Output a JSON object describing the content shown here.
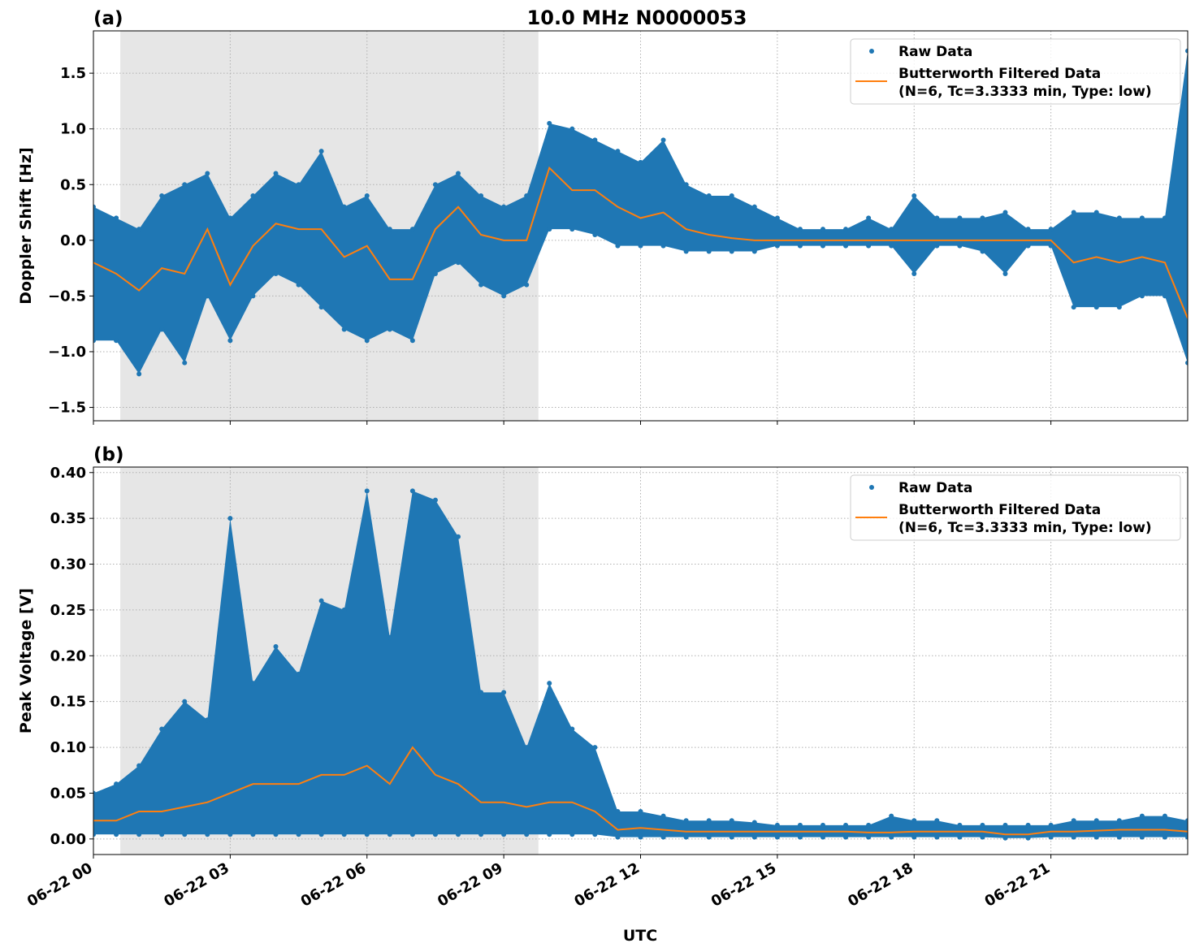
{
  "title": "10.0 MHz N0000053",
  "colors": {
    "raw": "#1f77b4",
    "filtered": "#ff7f0e",
    "shade": "#e6e6e6"
  },
  "xlabel": "UTC",
  "x_ticks": [
    "06-22 00",
    "06-22 03",
    "06-22 06",
    "06-22 09",
    "06-22 12",
    "06-22 15",
    "06-22 18",
    "06-22 21"
  ],
  "shaded_interval_hours": [
    0.59,
    9.76
  ],
  "legend": {
    "raw": "Raw Data",
    "filtered_line1": "Butterworth Filtered Data",
    "filtered_line2": "(N=6, Tc=3.3333 min, Type: low)",
    "placement": "top-right"
  },
  "chart_data": [
    {
      "type": "scatter+line",
      "panel_label": "(a)",
      "ylabel": "Doppler Shift [Hz]",
      "xlim_hours": [
        0,
        24
      ],
      "ylim": [
        -1.62,
        1.88
      ],
      "y_ticks": [
        "−1.5",
        "−1.0",
        "−0.5",
        "0.0",
        "0.5",
        "1.0",
        "1.5"
      ],
      "y_tick_values": [
        -1.5,
        -1,
        -0.5,
        0,
        0.5,
        1,
        1.5
      ],
      "grid": true,
      "x_hours": [
        0,
        0.5,
        1,
        1.5,
        2,
        2.5,
        3,
        3.5,
        4,
        4.5,
        5,
        5.5,
        6,
        6.5,
        7,
        7.5,
        8,
        8.5,
        9,
        9.5,
        10,
        10.5,
        11,
        11.5,
        12,
        12.5,
        13,
        13.5,
        14,
        14.5,
        15,
        15.5,
        16,
        16.5,
        17,
        17.5,
        18,
        18.5,
        19,
        19.5,
        20,
        20.5,
        21,
        21.5,
        22,
        22.5,
        23,
        23.5,
        24
      ],
      "filtered": [
        -0.2,
        -0.3,
        -0.45,
        -0.25,
        -0.3,
        0.1,
        -0.4,
        -0.05,
        0.15,
        0.1,
        0.1,
        -0.15,
        -0.05,
        -0.35,
        -0.35,
        0.1,
        0.3,
        0.05,
        0,
        0,
        0.65,
        0.45,
        0.45,
        0.3,
        0.2,
        0.25,
        0.1,
        0.05,
        0.02,
        0,
        0,
        0,
        0,
        0,
        0,
        0,
        0,
        0,
        0,
        0,
        0,
        0,
        0,
        -0.2,
        -0.15,
        -0.2,
        -0.15,
        -0.2,
        -0.7
      ],
      "raw_min": [
        -0.9,
        -0.9,
        -1.2,
        -0.8,
        -1.1,
        -0.5,
        -0.9,
        -0.5,
        -0.3,
        -0.4,
        -0.6,
        -0.8,
        -0.9,
        -0.8,
        -0.9,
        -0.3,
        -0.2,
        -0.4,
        -0.5,
        -0.4,
        0.1,
        0.1,
        0.05,
        -0.05,
        -0.05,
        -0.05,
        -0.1,
        -0.1,
        -0.1,
        -0.1,
        -0.05,
        -0.05,
        -0.05,
        -0.05,
        -0.05,
        -0.05,
        -0.3,
        -0.05,
        -0.05,
        -0.1,
        -0.3,
        -0.05,
        -0.05,
        -0.6,
        -0.6,
        -0.6,
        -0.5,
        -0.5,
        -1.1
      ],
      "raw_max": [
        0.3,
        0.2,
        0.1,
        0.4,
        0.5,
        0.6,
        0.2,
        0.4,
        0.6,
        0.5,
        0.8,
        0.3,
        0.4,
        0.1,
        0.1,
        0.5,
        0.6,
        0.4,
        0.3,
        0.4,
        1.05,
        1.0,
        0.9,
        0.8,
        0.7,
        0.9,
        0.5,
        0.4,
        0.4,
        0.3,
        0.2,
        0.1,
        0.1,
        0.1,
        0.2,
        0.1,
        0.4,
        0.2,
        0.2,
        0.2,
        0.25,
        0.1,
        0.1,
        0.25,
        0.25,
        0.2,
        0.2,
        0.2,
        1.7
      ]
    },
    {
      "type": "scatter+line",
      "panel_label": "(b)",
      "ylabel": "Peak Voltage [V]",
      "xlim_hours": [
        0,
        24
      ],
      "ylim": [
        -0.017,
        0.406
      ],
      "y_ticks": [
        "0.00",
        "0.05",
        "0.10",
        "0.15",
        "0.20",
        "0.25",
        "0.30",
        "0.35",
        "0.40"
      ],
      "y_tick_values": [
        0,
        0.05,
        0.1,
        0.15,
        0.2,
        0.25,
        0.3,
        0.35,
        0.4
      ],
      "grid": true,
      "x_hours": [
        0,
        0.5,
        1,
        1.5,
        2,
        2.5,
        3,
        3.5,
        4,
        4.5,
        5,
        5.5,
        6,
        6.5,
        7,
        7.5,
        8,
        8.5,
        9,
        9.5,
        10,
        10.5,
        11,
        11.5,
        12,
        12.5,
        13,
        13.5,
        14,
        14.5,
        15,
        15.5,
        16,
        16.5,
        17,
        17.5,
        18,
        18.5,
        19,
        19.5,
        20,
        20.5,
        21,
        21.5,
        22,
        22.5,
        23,
        23.5,
        24
      ],
      "filtered": [
        0.02,
        0.02,
        0.03,
        0.03,
        0.035,
        0.04,
        0.05,
        0.06,
        0.06,
        0.06,
        0.07,
        0.07,
        0.08,
        0.06,
        0.1,
        0.07,
        0.06,
        0.04,
        0.04,
        0.035,
        0.04,
        0.04,
        0.03,
        0.01,
        0.012,
        0.01,
        0.008,
        0.008,
        0.008,
        0.008,
        0.008,
        0.008,
        0.008,
        0.008,
        0.007,
        0.007,
        0.008,
        0.008,
        0.008,
        0.008,
        0.005,
        0.005,
        0.008,
        0.008,
        0.009,
        0.01,
        0.01,
        0.01,
        0.008
      ],
      "raw_min": [
        0.005,
        0.005,
        0.005,
        0.005,
        0.005,
        0.005,
        0.005,
        0.005,
        0.005,
        0.005,
        0.005,
        0.005,
        0.005,
        0.005,
        0.005,
        0.005,
        0.005,
        0.005,
        0.005,
        0.005,
        0.005,
        0.005,
        0.005,
        0.002,
        0.002,
        0.002,
        0.002,
        0.002,
        0.002,
        0.002,
        0.002,
        0.002,
        0.002,
        0.002,
        0.002,
        0.002,
        0.002,
        0.002,
        0.002,
        0.002,
        0.001,
        0.001,
        0.002,
        0.002,
        0.002,
        0.002,
        0.002,
        0.002,
        0.002
      ],
      "raw_max": [
        0.05,
        0.06,
        0.08,
        0.12,
        0.15,
        0.13,
        0.35,
        0.17,
        0.21,
        0.18,
        0.26,
        0.25,
        0.38,
        0.22,
        0.38,
        0.37,
        0.33,
        0.16,
        0.16,
        0.1,
        0.17,
        0.12,
        0.1,
        0.03,
        0.03,
        0.025,
        0.02,
        0.02,
        0.02,
        0.018,
        0.015,
        0.015,
        0.015,
        0.015,
        0.015,
        0.025,
        0.02,
        0.02,
        0.015,
        0.015,
        0.015,
        0.015,
        0.015,
        0.02,
        0.02,
        0.02,
        0.025,
        0.025,
        0.02
      ]
    }
  ]
}
